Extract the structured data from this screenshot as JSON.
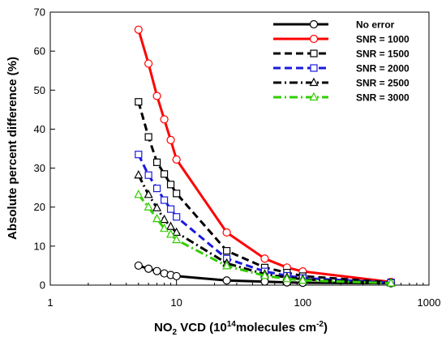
{
  "chart_data": {
    "type": "line",
    "xlabel": {
      "prefix": "NO",
      "sub": "2",
      "middle": " VCD (10",
      "sup1": "14",
      "rest": "molecules cm",
      "sup2": "-2",
      "end": ")"
    },
    "ylabel": "Absolute percent difference (%)",
    "x_scale": "log",
    "xlim": [
      1,
      1000
    ],
    "ylim": [
      0,
      70
    ],
    "x_ticks": [
      1,
      10,
      100,
      1000
    ],
    "x_tick_labels": [
      "1",
      "10",
      "100",
      "1000"
    ],
    "y_ticks": [
      0,
      10,
      20,
      30,
      40,
      50,
      60,
      70
    ],
    "y_tick_labels": [
      "0",
      "10",
      "20",
      "30",
      "40",
      "50",
      "60",
      "70"
    ],
    "grid": false,
    "legend_position": "top-right",
    "x": [
      5,
      6,
      7,
      8,
      9,
      10,
      25,
      50,
      75,
      100,
      500
    ],
    "series": [
      {
        "name": "No error",
        "color": "#000000",
        "dash": "solid",
        "marker": "circle",
        "values": [
          5.0,
          4.2,
          3.6,
          3.0,
          2.6,
          2.3,
          1.2,
          0.9,
          0.7,
          0.6,
          0.5
        ]
      },
      {
        "name": "SNR = 1000",
        "color": "#ff0000",
        "dash": "solid",
        "marker": "circle",
        "values": [
          65.5,
          56.8,
          48.5,
          42.5,
          37.2,
          32.2,
          13.5,
          6.8,
          4.5,
          3.5,
          0.8
        ]
      },
      {
        "name": "SNR = 1500",
        "color": "#000000",
        "dash": "dash",
        "marker": "square",
        "values": [
          47.0,
          38.0,
          31.5,
          28.5,
          25.8,
          23.5,
          8.8,
          4.5,
          3.2,
          2.3,
          0.7
        ]
      },
      {
        "name": "SNR = 2000",
        "color": "#1a1adc",
        "dash": "dash",
        "marker": "square",
        "values": [
          33.5,
          28.2,
          24.8,
          21.8,
          19.5,
          17.5,
          6.8,
          3.5,
          2.4,
          1.8,
          0.6
        ]
      },
      {
        "name": "SNR = 2500",
        "color": "#000000",
        "dash": "dashdot",
        "marker": "triangle",
        "values": [
          28.2,
          23.2,
          19.8,
          16.8,
          15.0,
          13.5,
          5.6,
          2.8,
          2.0,
          1.5,
          0.5
        ]
      },
      {
        "name": "SNR = 3000",
        "color": "#33cc00",
        "dash": "dashdot",
        "marker": "triangle",
        "values": [
          23.2,
          20.0,
          17.0,
          14.5,
          13.0,
          11.6,
          4.9,
          2.4,
          1.6,
          1.2,
          0.5
        ]
      }
    ]
  }
}
